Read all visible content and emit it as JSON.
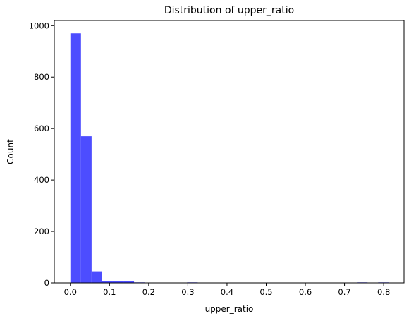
{
  "chart_data": {
    "type": "bar",
    "title": "Distribution of upper_ratio",
    "xlabel": "upper_ratio",
    "ylabel": "Count",
    "xlim": [
      -0.041,
      0.852
    ],
    "ylim": [
      0,
      1020
    ],
    "x_ticks": [
      0.0,
      0.1,
      0.2,
      0.3,
      0.4,
      0.5,
      0.6,
      0.7,
      0.8
    ],
    "x_tick_labels": [
      "0.0",
      "0.1",
      "0.2",
      "0.3",
      "0.4",
      "0.5",
      "0.6",
      "0.7",
      "0.8"
    ],
    "y_ticks": [
      0,
      200,
      400,
      600,
      800,
      1000
    ],
    "y_tick_labels": [
      "0",
      "200",
      "400",
      "600",
      "800",
      "1000"
    ],
    "bin_width": 0.0271,
    "bin_start": 0.0,
    "values": [
      970,
      570,
      45,
      8,
      6,
      6,
      2,
      0,
      0,
      0,
      0,
      2,
      0,
      0,
      0,
      0,
      0,
      0,
      0,
      0,
      0,
      0,
      0,
      0,
      0,
      0,
      0,
      2,
      0,
      2
    ],
    "bar_color": "#4d4dff",
    "grid": false
  }
}
